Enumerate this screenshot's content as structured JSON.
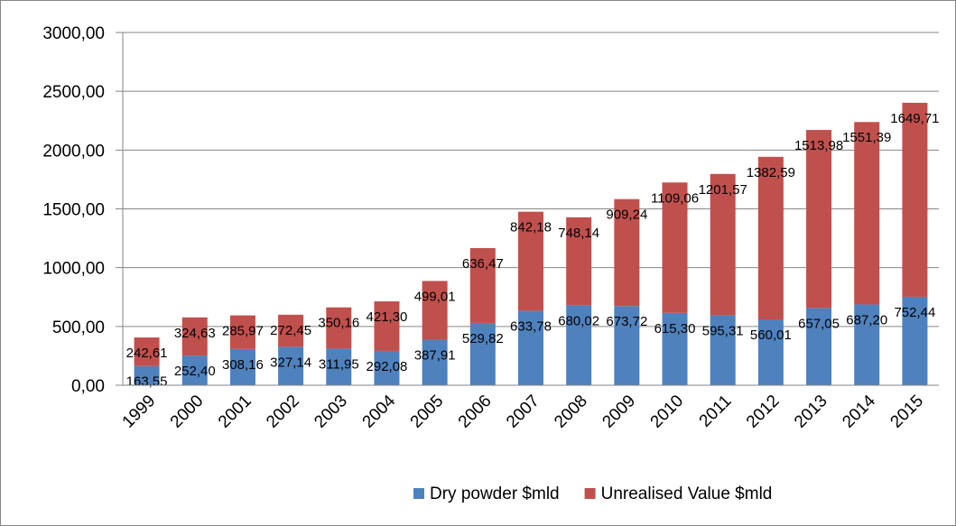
{
  "chart_data": {
    "type": "stacked_bar",
    "categories": [
      "1999",
      "2000",
      "2001",
      "2002",
      "2003",
      "2004",
      "2005",
      "2006",
      "2007",
      "2008",
      "2009",
      "2010",
      "2011",
      "2012",
      "2013",
      "2014",
      "2015"
    ],
    "series": [
      {
        "name": "Dry powder $mld",
        "color": "#4f81bd",
        "values": [
          163.55,
          252.4,
          308.16,
          327.14,
          311.95,
          292.08,
          387.91,
          529.82,
          633.78,
          680.02,
          673.72,
          615.3,
          595.31,
          560.01,
          657.05,
          687.2,
          752.44
        ],
        "value_labels": [
          "163,55",
          "252,40",
          "308,16",
          "327,14",
          "311,95",
          "292,08",
          "387,91",
          "529,82",
          "633,78",
          "680,02",
          "673,72",
          "615,30",
          "595,31",
          "560,01",
          "657,05",
          "687,20",
          "752,44"
        ]
      },
      {
        "name": "Unrealised Value $mld",
        "color": "#c0504d",
        "values": [
          242.61,
          324.63,
          285.97,
          272.45,
          350.16,
          421.3,
          499.01,
          636.47,
          842.18,
          748.14,
          909.24,
          1109.06,
          1201.57,
          1382.59,
          1513.98,
          1551.39,
          1649.71
        ],
        "value_labels": [
          "242,61",
          "324,63",
          "285,97",
          "272,45",
          "350,16",
          "421,30",
          "499,01",
          "636,47",
          "842,18",
          "748,14",
          "909,24",
          "1109,06",
          "1201,57",
          "1382,59",
          "1513,98",
          "1551,39",
          "1649,71"
        ]
      }
    ],
    "ylim": [
      0,
      3000
    ],
    "yticks": [
      {
        "value": 0,
        "label": "0,00"
      },
      {
        "value": 500,
        "label": "500,00"
      },
      {
        "value": 1000,
        "label": "1000,00"
      },
      {
        "value": 1500,
        "label": "1500,00"
      },
      {
        "value": 2000,
        "label": "2000,00"
      },
      {
        "value": 2500,
        "label": "2500,00"
      },
      {
        "value": 3000,
        "label": "3000,00"
      }
    ],
    "grid": true,
    "legend": "bottom"
  }
}
